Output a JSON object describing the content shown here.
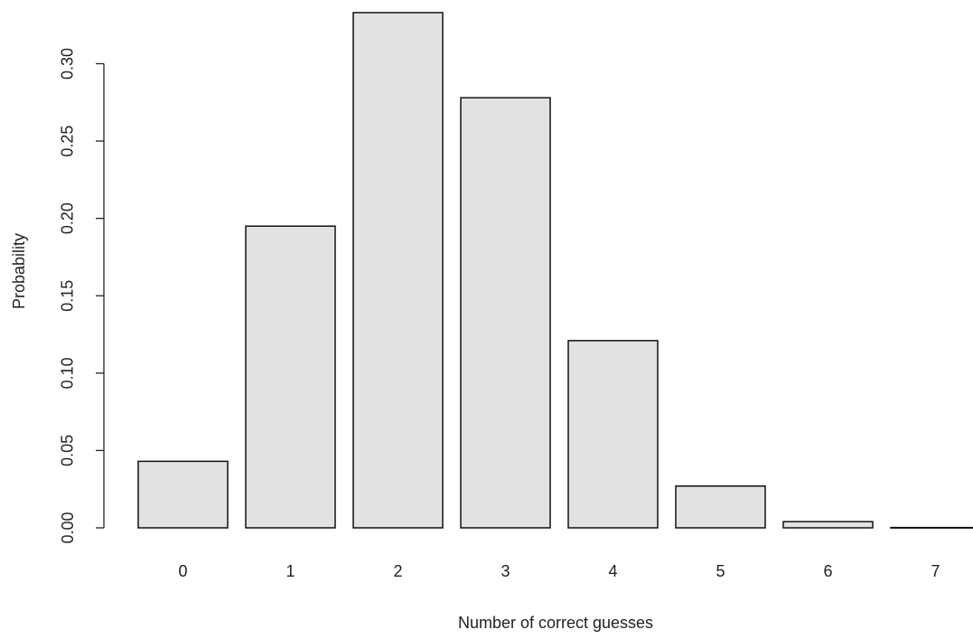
{
  "chart_data": {
    "type": "bar",
    "x_label": "Number of correct guesses",
    "y_label": "Probability",
    "categories": [
      "0",
      "1",
      "2",
      "3",
      "4",
      "5",
      "6",
      "7"
    ],
    "values": [
      0.043,
      0.195,
      0.333,
      0.278,
      0.121,
      0.027,
      0.004,
      0.0002
    ],
    "color": "#e2e2e2",
    "ylim": [
      0,
      0.34
    ],
    "yticks": [
      {
        "value": 0,
        "label": "0.00"
      },
      {
        "value": 0.05,
        "label": "0.05"
      },
      {
        "value": 0.1,
        "label": "0.10"
      },
      {
        "value": 0.15,
        "label": "0.15"
      },
      {
        "value": 0.2,
        "label": "0.20"
      },
      {
        "value": 0.25,
        "label": "0.25"
      },
      {
        "value": 0.3,
        "label": "0.30"
      }
    ],
    "grid": false
  }
}
